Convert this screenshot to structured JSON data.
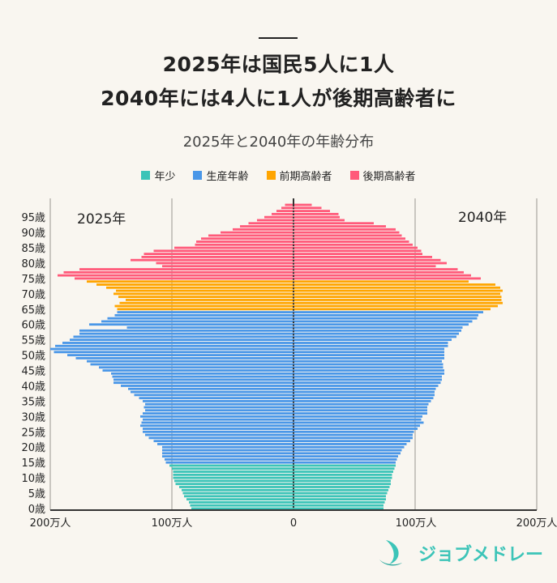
{
  "title_lines": [
    "2025年は国民5人に1人",
    "2040年には4人に1人が後期高齢者に"
  ],
  "subtitle": "2025年と2040年の年齢分布",
  "legend": [
    {
      "label": "年少",
      "color": "#3cc4b8"
    },
    {
      "label": "生産年齢",
      "color": "#4a97e8"
    },
    {
      "label": "前期高齢者",
      "color": "#ffa500"
    },
    {
      "label": "後期高齢者",
      "color": "#ff5a7a"
    }
  ],
  "logo_text": "ジョブメドレー",
  "chart_data": {
    "type": "bar",
    "orientation": "horizontal-pyramid",
    "unit": "万人",
    "x_ticks_left": [
      "200万人",
      "100万人"
    ],
    "x_tick_center": "0",
    "x_ticks_right": [
      "100万人",
      "200万人"
    ],
    "xlim": [
      0,
      200
    ],
    "age_tick_labels": [
      "0歳",
      "5歳",
      "10歳",
      "15歳",
      "20歳",
      "25歳",
      "30歳",
      "35歳",
      "40歳",
      "45歳",
      "50歳",
      "55歳",
      "60歳",
      "65歳",
      "70歳",
      "75歳",
      "80歳",
      "85歳",
      "90歳",
      "95歳"
    ],
    "age_ticks": [
      0,
      5,
      10,
      15,
      20,
      25,
      30,
      35,
      40,
      45,
      50,
      55,
      60,
      65,
      70,
      75,
      80,
      85,
      90,
      95
    ],
    "ages": "0-99",
    "groups": [
      {
        "label": "年少",
        "from": 0,
        "to": 14
      },
      {
        "label": "生産年齢",
        "from": 15,
        "to": 64
      },
      {
        "label": "前期高齢者",
        "from": 65,
        "to": 74
      },
      {
        "label": "後期高齢者",
        "from": 75,
        "to": 99
      }
    ],
    "series": [
      {
        "name": "2025年",
        "side": "left",
        "values_age99_to_0": [
          7,
          10,
          14,
          18,
          24,
          30,
          37,
          44,
          50,
          60,
          70,
          76,
          80,
          81,
          98,
          115,
          123,
          125,
          134,
          113,
          108,
          176,
          189,
          194,
          180,
          170,
          162,
          154,
          146,
          148,
          144,
          138,
          143,
          147,
          145,
          145,
          147,
          153,
          158,
          168,
          137,
          176,
          176,
          181,
          184,
          190,
          196,
          200,
          197,
          186,
          179,
          170,
          167,
          160,
          157,
          150,
          149,
          148,
          148,
          142,
          136,
          134,
          131,
          127,
          124,
          122,
          123,
          122,
          124,
          126,
          124,
          125,
          126,
          124,
          124,
          122,
          119,
          115,
          112,
          108,
          108,
          108,
          108,
          106,
          105,
          102,
          100,
          99,
          99,
          99,
          98,
          97,
          94,
          92,
          91,
          90,
          88,
          86,
          85,
          84
        ]
      },
      {
        "name": "2040年",
        "side": "right",
        "values_age99_to_0": [
          15,
          23,
          30,
          37,
          38,
          42,
          66,
          76,
          84,
          87,
          89,
          92,
          95,
          98,
          102,
          105,
          106,
          114,
          121,
          126,
          117,
          135,
          140,
          146,
          154,
          144,
          166,
          170,
          172,
          170,
          171,
          171,
          172,
          168,
          162,
          156,
          152,
          151,
          147,
          144,
          139,
          138,
          136,
          134,
          130,
          127,
          127,
          124,
          124,
          124,
          124,
          122,
          123,
          123,
          124,
          124,
          122,
          122,
          121,
          119,
          117,
          116,
          116,
          115,
          113,
          111,
          110,
          110,
          110,
          106,
          105,
          107,
          104,
          102,
          99,
          98,
          98,
          96,
          93,
          91,
          89,
          88,
          86,
          85,
          84,
          84,
          83,
          82,
          81,
          81,
          80,
          80,
          79,
          78,
          77,
          76,
          76,
          75,
          74,
          74
        ]
      }
    ]
  }
}
